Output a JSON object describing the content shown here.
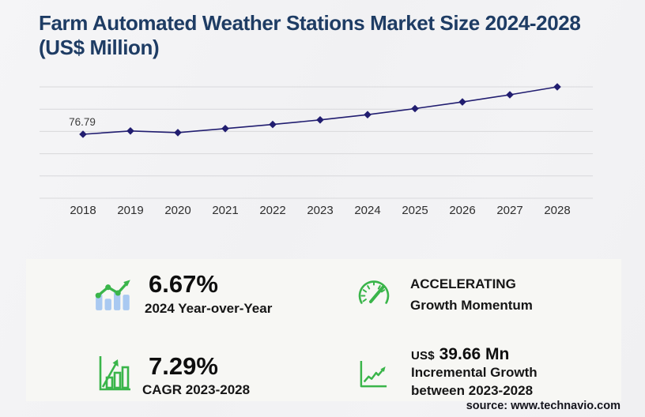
{
  "header": {
    "title": "Farm Automated Weather Stations Market Size 2024-2028 (US$ Million)"
  },
  "chart_data": {
    "type": "line",
    "x": [
      "2018",
      "2019",
      "2020",
      "2021",
      "2022",
      "2023",
      "2024",
      "2025",
      "2026",
      "2027",
      "2028"
    ],
    "values": [
      76.79,
      80.8,
      78.8,
      83.6,
      88.6,
      94.05,
      100.32,
      107.6,
      115.6,
      124.2,
      133.71
    ],
    "point_label": "76.79",
    "title": "Farm Automated Weather Stations Market Size 2024-2028 (US$ Million)",
    "xlabel": "",
    "ylabel": "",
    "ylim": [
      0,
      133.71
    ],
    "grid": true,
    "gridline_count": 6,
    "legend": "none",
    "marker": "diamond",
    "line_color": "#211d70"
  },
  "stats": {
    "yoy": {
      "value": "6.67%",
      "label": "2024 Year-over-Year"
    },
    "cagr": {
      "value": "7.29%",
      "label": "CAGR 2023-2028"
    },
    "momentum": {
      "status": "ACCELERATING",
      "label": "Growth Momentum"
    },
    "incremental": {
      "currency": "US$",
      "value": "39.66 Mn",
      "label_line1": "Incremental Growth",
      "label_line2": "between 2023-2028"
    }
  },
  "footer": {
    "source": "source: www.technavio.com"
  },
  "colors": {
    "accent_green": "#3ab54a",
    "bar_blue": "#a9c9f1",
    "line_navy": "#211d70",
    "title_navy": "#1e3c64",
    "gridline_gray": "#d8d8db"
  }
}
